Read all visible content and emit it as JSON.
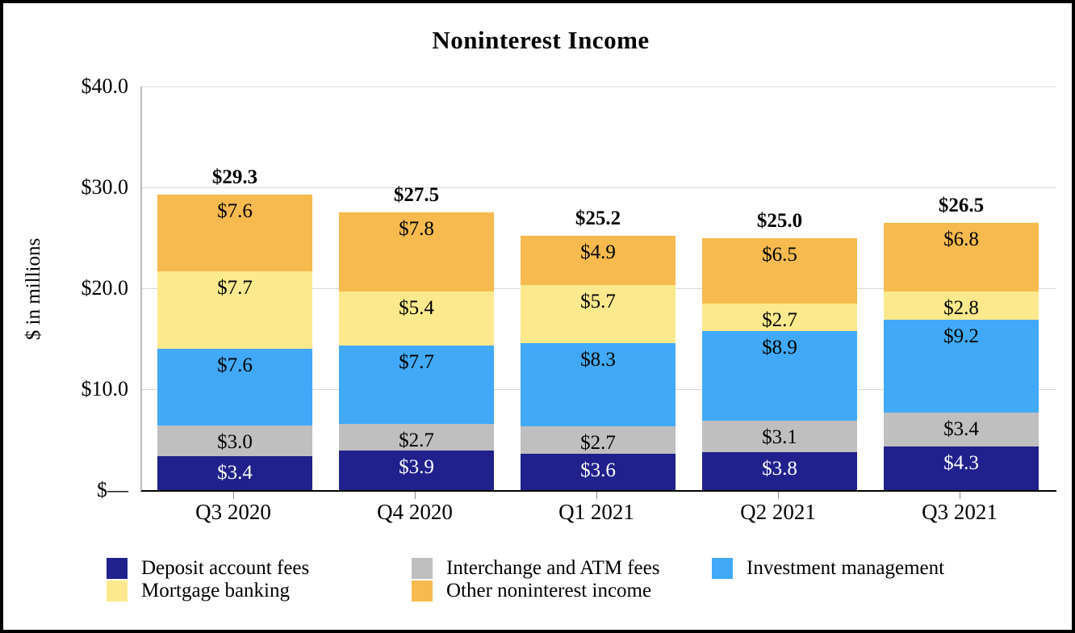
{
  "title": "Noninterest Income",
  "y_axis": {
    "label": "$ in millions",
    "ticks": [
      "$40.0",
      "$30.0",
      "$20.0",
      "$10.0",
      "$—"
    ],
    "tick_values": [
      40,
      30,
      20,
      10,
      0
    ]
  },
  "chart_data": {
    "type": "bar",
    "stacked": true,
    "title": "Noninterest Income",
    "xlabel": "",
    "ylabel": "$ in millions",
    "ylim": [
      0,
      40
    ],
    "grid": true,
    "legend_position": "bottom",
    "categories": [
      "Q3 2020",
      "Q4 2020",
      "Q1 2021",
      "Q2 2021",
      "Q3 2021"
    ],
    "series": [
      {
        "name": "Deposit account fees",
        "color": "#20218c",
        "label_color": "#ffffff",
        "values": [
          3.4,
          3.9,
          3.6,
          3.8,
          4.3
        ],
        "labels": [
          "$3.4",
          "$3.9",
          "$3.6",
          "$3.8",
          "$4.3"
        ]
      },
      {
        "name": "Interchange and ATM fees",
        "color": "#bfbfbf",
        "label_color": "#000000",
        "values": [
          3.0,
          2.7,
          2.7,
          3.1,
          3.4
        ],
        "labels": [
          "$3.0",
          "$2.7",
          "$2.7",
          "$3.1",
          "$3.4"
        ]
      },
      {
        "name": "Investment management",
        "color": "#41a9f8",
        "label_color": "#000000",
        "values": [
          7.6,
          7.7,
          8.3,
          8.9,
          9.2
        ],
        "labels": [
          "$7.6",
          "$7.7",
          "$8.3",
          "$8.9",
          "$9.2"
        ]
      },
      {
        "name": "Mortgage banking",
        "color": "#fce98d",
        "label_color": "#000000",
        "values": [
          7.7,
          5.4,
          5.7,
          2.7,
          2.8
        ],
        "labels": [
          "$7.7",
          "$5.4",
          "$5.7",
          "$2.7",
          "$2.8"
        ]
      },
      {
        "name": "Other noninterest income",
        "color": "#f7ba4e",
        "label_color": "#000000",
        "values": [
          7.6,
          7.8,
          4.9,
          6.5,
          6.8
        ],
        "labels": [
          "$7.6",
          "$7.8",
          "$4.9",
          "$6.5",
          "$6.8"
        ]
      }
    ],
    "totals": [
      29.3,
      27.5,
      25.2,
      25.0,
      26.5
    ],
    "total_labels": [
      "$29.3",
      "$27.5",
      "$25.2",
      "$25.0",
      "$26.5"
    ]
  },
  "legend": {
    "entries": [
      {
        "label": "Deposit account fees",
        "color": "#20218c"
      },
      {
        "label": "Interchange and ATM fees",
        "color": "#bfbfbf"
      },
      {
        "label": "Investment management",
        "color": "#41a9f8"
      },
      {
        "label": "Mortgage banking",
        "color": "#fce98d"
      },
      {
        "label": "Other noninterest income",
        "color": "#f7ba4e"
      }
    ]
  },
  "colors": {
    "gridline": "#d9d9d9",
    "y_axis_line": "#bfbfbf",
    "baseline": "#000000",
    "tick_mark": "#8c8c8c",
    "frame_border": "#000000"
  }
}
